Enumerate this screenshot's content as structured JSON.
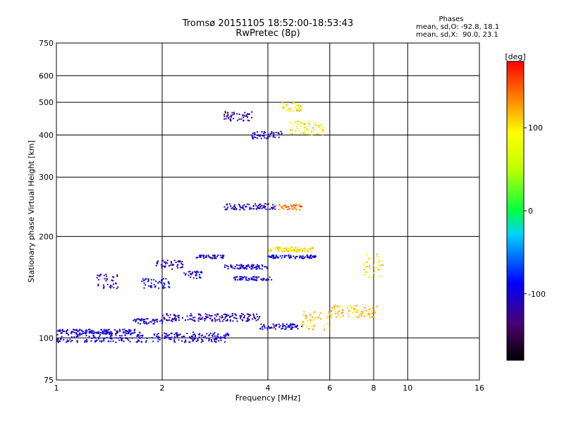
{
  "header": {
    "title": "Tromsø 20151105 18:52:00-18:53:43",
    "subtitle": "RwPretec (8p)"
  },
  "phases": {
    "heading": "Phases",
    "line_o": "mean, sd,O: -92.8, 18.1",
    "line_x": "mean, sd,X:  90.0, 23.1"
  },
  "colorbar": {
    "label": "[deg]",
    "tick_labels": [
      "100",
      "0",
      "-100"
    ],
    "tick_values": [
      100,
      0,
      -100
    ],
    "range": [
      -180,
      180
    ]
  },
  "chart_data": {
    "type": "scatter",
    "xlabel": "Frequency [MHz]",
    "ylabel": "Stationary phase Virtual Height [km]",
    "x_scale": "log2",
    "y_scale": "log",
    "xlim": [
      1,
      16
    ],
    "ylim": [
      75,
      750
    ],
    "x_ticks": [
      1,
      2,
      4,
      6,
      8,
      10,
      16
    ],
    "x_tick_labels": [
      "1",
      "2",
      "4",
      "6",
      "8",
      "10",
      "16"
    ],
    "x_gridlines": [
      1,
      2,
      4,
      6,
      8,
      10,
      16
    ],
    "y_ticks": [
      75,
      100,
      200,
      300,
      400,
      500,
      600,
      750
    ],
    "y_tick_labels": [
      "75",
      "100",
      "200",
      "300",
      "400",
      "500",
      "600",
      "750"
    ],
    "y_gridlines": [
      100,
      200,
      300,
      400,
      500,
      600
    ],
    "grid": true,
    "colorscale": "phase-rainbow",
    "traces": [
      {
        "x0": 1.0,
        "x1": 3.1,
        "y0": 97,
        "y1": 104,
        "phase": -100
      },
      {
        "x0": 1.0,
        "x1": 1.7,
        "y0": 103,
        "y1": 106,
        "phase": -100
      },
      {
        "x0": 1.65,
        "x1": 2.0,
        "y0": 110,
        "y1": 114,
        "phase": -100
      },
      {
        "x0": 2.0,
        "x1": 3.8,
        "y0": 112,
        "y1": 118,
        "phase": -110
      },
      {
        "x0": 3.8,
        "x1": 5.0,
        "y0": 106,
        "y1": 110,
        "phase": -100
      },
      {
        "x0": 1.3,
        "x1": 1.5,
        "y0": 140,
        "y1": 155,
        "phase": -110
      },
      {
        "x0": 1.75,
        "x1": 2.1,
        "y0": 140,
        "y1": 150,
        "phase": -100
      },
      {
        "x0": 1.9,
        "x1": 2.3,
        "y0": 160,
        "y1": 170,
        "phase": -110
      },
      {
        "x0": 2.3,
        "x1": 2.6,
        "y0": 150,
        "y1": 158,
        "phase": -100
      },
      {
        "x0": 2.5,
        "x1": 3.0,
        "y0": 172,
        "y1": 176,
        "phase": -110
      },
      {
        "x0": 3.0,
        "x1": 4.0,
        "y0": 160,
        "y1": 165,
        "phase": -100
      },
      {
        "x0": 3.2,
        "x1": 4.1,
        "y0": 148,
        "y1": 152,
        "phase": -100
      },
      {
        "x0": 4.0,
        "x1": 5.5,
        "y0": 172,
        "y1": 176,
        "phase": -100
      },
      {
        "x0": 4.0,
        "x1": 5.4,
        "y0": 180,
        "y1": 186,
        "phase": 100
      },
      {
        "x0": 3.0,
        "x1": 4.2,
        "y0": 240,
        "y1": 250,
        "phase": -110
      },
      {
        "x0": 4.2,
        "x1": 5.0,
        "y0": 240,
        "y1": 250,
        "phase": 140
      },
      {
        "x0": 3.0,
        "x1": 3.6,
        "y0": 440,
        "y1": 470,
        "phase": -120
      },
      {
        "x0": 3.6,
        "x1": 4.4,
        "y0": 390,
        "y1": 410,
        "phase": -100
      },
      {
        "x0": 4.6,
        "x1": 5.8,
        "y0": 400,
        "y1": 440,
        "phase": 100
      },
      {
        "x0": 4.4,
        "x1": 5.0,
        "y0": 470,
        "y1": 500,
        "phase": 100
      },
      {
        "x0": 5.0,
        "x1": 6.0,
        "y0": 105,
        "y1": 120,
        "phase": 110
      },
      {
        "x0": 6.0,
        "x1": 8.2,
        "y0": 115,
        "y1": 125,
        "phase": 110
      },
      {
        "x0": 7.5,
        "x1": 8.5,
        "y0": 150,
        "y1": 180,
        "phase": 100
      }
    ]
  }
}
